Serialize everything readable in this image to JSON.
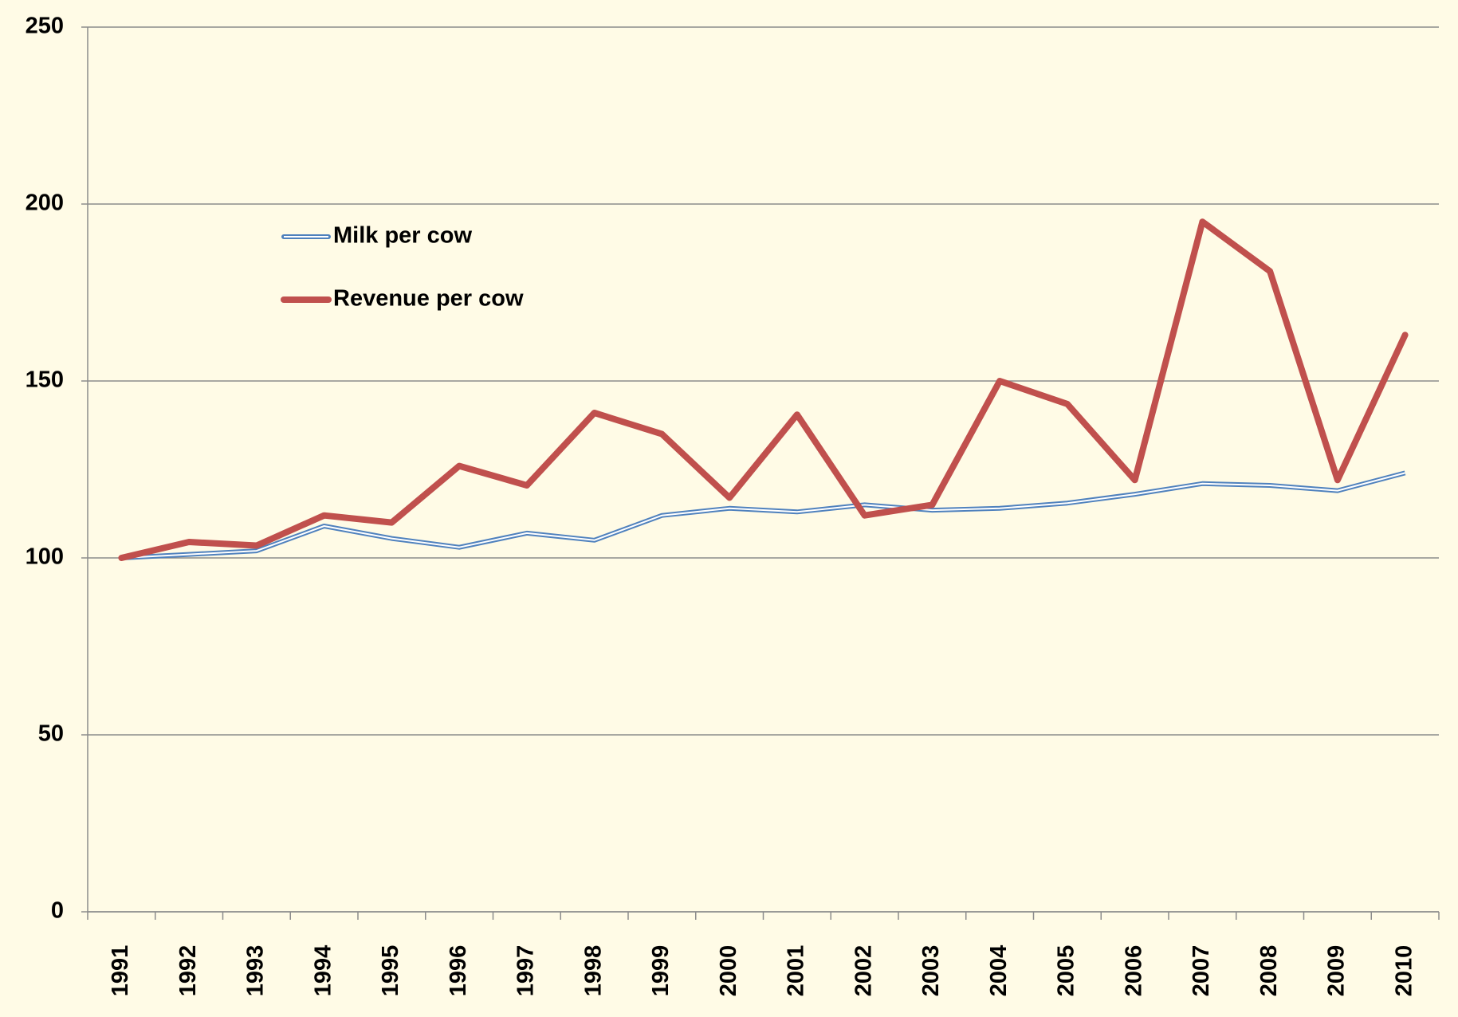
{
  "chart_data": {
    "type": "line",
    "categories": [
      "1991",
      "1992",
      "1993",
      "1994",
      "1995",
      "1996",
      "1997",
      "1998",
      "1999",
      "2000",
      "2001",
      "2002",
      "2003",
      "2004",
      "2005",
      "2006",
      "2007",
      "2008",
      "2009",
      "2010"
    ],
    "series": [
      {
        "name": "Milk per cow",
        "color": "#4f81bd",
        "values": [
          100,
          101,
          102,
          109,
          105.5,
          103,
          107,
          105,
          112,
          114,
          113,
          115,
          113.5,
          114,
          115.5,
          118,
          121,
          120.5,
          119,
          124
        ]
      },
      {
        "name": "Revenue per cow",
        "color": "#c0504d",
        "values": [
          100,
          104.5,
          103.5,
          112,
          110,
          126,
          120.5,
          141,
          135,
          117,
          140.5,
          112,
          115,
          150,
          143.5,
          122,
          195,
          181,
          122,
          163
        ]
      }
    ],
    "ylim": [
      0,
      250
    ],
    "yticks": [
      0,
      50,
      100,
      150,
      200,
      250
    ],
    "grid": true,
    "legend": "upper-left"
  }
}
